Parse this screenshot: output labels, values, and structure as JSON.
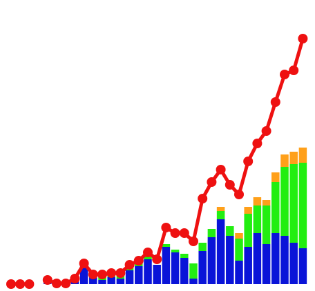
{
  "chart_data": {
    "type": "bar",
    "categories": [
      null,
      null,
      null,
      null,
      null,
      null,
      null,
      null,
      null,
      null,
      null,
      null,
      null,
      null,
      null,
      null,
      null,
      null,
      null,
      null,
      null,
      null,
      null,
      null,
      null,
      null,
      null,
      null,
      null,
      null,
      null,
      null,
      null
    ],
    "series": [
      {
        "color": "#0a14d8",
        "values": [
          2,
          2,
          1,
          0,
          2,
          2,
          2,
          6,
          28,
          10,
          6,
          10,
          8,
          20,
          26,
          36,
          28,
          54,
          46,
          38,
          8,
          48,
          68,
          94,
          70,
          34,
          54,
          74,
          58,
          74,
          70,
          60,
          52
        ]
      },
      {
        "color": "#22ee11",
        "values": [
          0,
          0,
          0,
          0,
          0,
          0,
          0,
          0,
          0,
          4,
          4,
          3,
          6,
          4,
          4,
          6,
          0,
          4,
          4,
          6,
          22,
          12,
          12,
          12,
          14,
          32,
          48,
          40,
          56,
          74,
          100,
          114,
          124
        ]
      },
      {
        "color": "#ffa01a",
        "values": [
          0,
          0,
          0,
          0,
          0,
          0,
          0,
          0,
          0,
          0,
          0,
          0,
          0,
          0,
          0,
          0,
          0,
          0,
          0,
          0,
          0,
          0,
          0,
          6,
          0,
          8,
          10,
          12,
          8,
          14,
          18,
          18,
          22
        ]
      },
      {
        "type": "line",
        "color": "#ee1111",
        "values": [
          0,
          0,
          0,
          null,
          6,
          1,
          1,
          8,
          30,
          14,
          14,
          16,
          16,
          28,
          34,
          46,
          36,
          82,
          74,
          74,
          62,
          124,
          148,
          166,
          144,
          130,
          178,
          204,
          222,
          264,
          304,
          310,
          356
        ]
      }
    ],
    "ylim": [
      0,
      410
    ]
  }
}
